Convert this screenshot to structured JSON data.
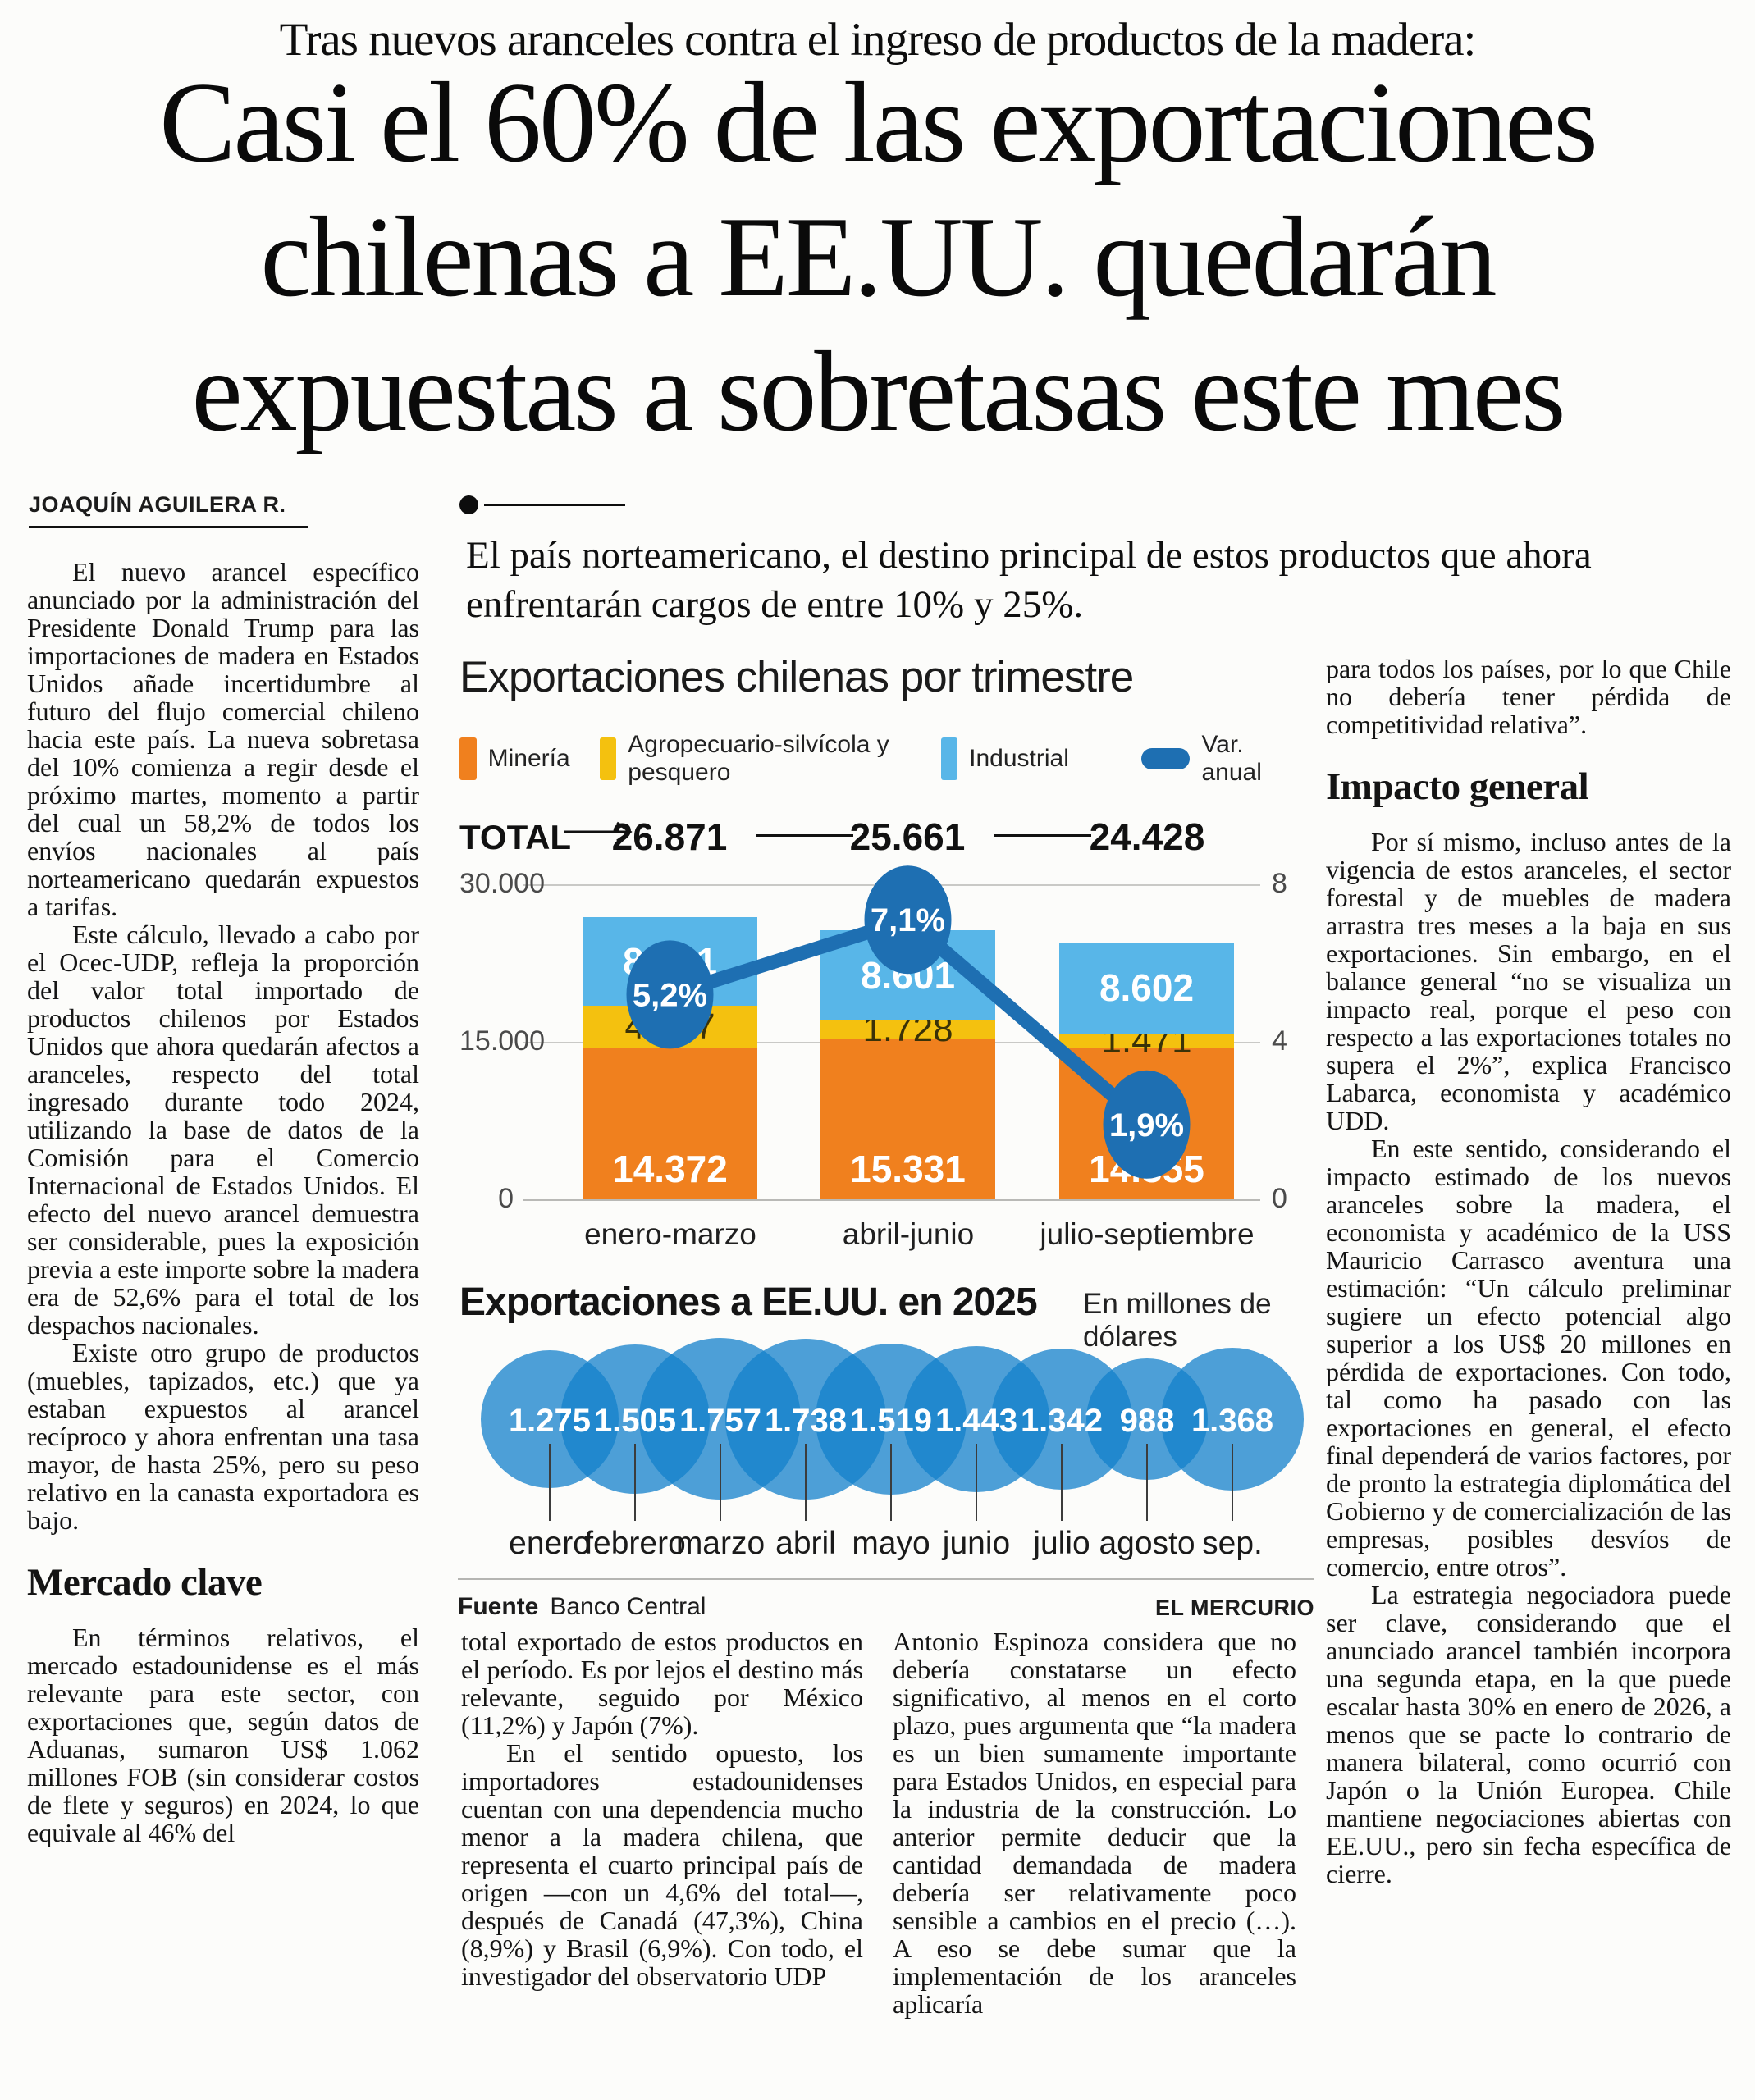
{
  "kicker": "Tras nuevos aranceles contra el ingreso de productos de la madera:",
  "headline": {
    "line1": "Casi el 60% de las exportaciones",
    "line2": "chilenas a EE.UU. quedarán",
    "line3": "expuestas a sobretasas este mes"
  },
  "standfirst": "El país norteamericano, el destino principal de estos productos que ahora enfrentarán cargos de entre 10% y 25%.",
  "article": {
    "byline": "JOAQUÍN AGUILERA R.",
    "col1": {
      "p1": "El nuevo arancel específico anunciado por la administración del Presidente Donald Trump para las importaciones de madera en Estados Unidos añade incertidumbre al futuro del flujo comercial chileno hacia este país. La nueva sobretasa del 10% comienza a regir desde el próximo martes, momento a partir del cual un 58,2% de todos los envíos nacionales al país norteamericano quedarán expuestos a tarifas.",
      "p2": "Este cálculo, llevado a cabo por el Ocec-UDP, refleja la proporción del valor total importado de productos chilenos por Estados Unidos que ahora quedarán afectos a aranceles, respecto del total ingresado durante todo 2024, utilizando la base de datos de la Comisión para el Comercio Internacional de Estados Unidos. El efecto del nuevo arancel demuestra ser considerable, pues la exposición previa a este importe sobre la madera era de 52,6% para el total de los despachos nacionales.",
      "p3": "Existe otro grupo de productos (muebles, tapizados, etc.) que ya estaban expuestos al arancel recíproco y ahora enfrentan una tasa mayor, de hasta 25%, pero su peso relativo en la canasta exportadora es bajo.",
      "heading": "Mercado clave",
      "p4": "En términos relativos, el mercado estadounidense es el más relevante para este sector, con exportaciones que, según datos de Aduanas, sumaron US$ 1.062 millones FOB (sin considerar costos de flete y seguros) en 2024, lo que equivale al 46% del"
    },
    "col2": {
      "p1": "total exportado de estos productos en el período. Es por lejos el destino más relevante, seguido por México (11,2%) y Japón (7%).",
      "p2": "En el sentido opuesto, los importadores estadounidenses cuentan con una dependencia mucho menor a la madera chilena, que representa el cuarto principal país de origen —con un 4,6% del total—, después de Canadá (47,3%), China (8,9%) y Brasil (6,9%). Con todo, el investigador del observatorio UDP"
    },
    "col3": {
      "p1": "Antonio Espinoza considera que no debería constatarse un efecto significativo, al menos en el corto plazo, pues argumenta que “la madera es un bien sumamente importante para Estados Unidos, en especial para la industria de la construcción. Lo anterior permite deducir que la cantidad demandada de madera debería ser relativamente poco sensible a cambios en el precio (…). A eso se debe sumar que la implementación de los aranceles aplicaría"
    },
    "col4": {
      "p1": "para todos los países, por lo que Chile no debería tener pérdida de competitividad relativa”.",
      "heading": "Impacto general",
      "p2": "Por sí mismo, incluso antes de la vigencia de estos aranceles, el sector forestal y de muebles de madera arrastra tres meses a la baja en sus exportaciones. Sin embargo, en el balance general “no se visualiza un impacto real, porque el peso con respecto a las exportaciones totales no supera el 2%”, explica Francisco Labarca, economista y académico UDD.",
      "p3": "En este sentido, considerando el impacto estimado de los nuevos aranceles sobre la madera, el economista y académico de la USS Mauricio Carrasco aventura una estimación: “Un cálculo preliminar sugiere un efecto potencial algo superior a los US$ 20 millones en pérdida de exportaciones. Con todo, tal como ha pasado con las exportaciones en general, el efecto final dependerá de varios factores, por de pronto la estrategia diplomática del Gobierno y de comercialización de las empresas, posibles desvíos de comercio, entre otros”.",
      "p4": "La estrategia negociadora puede ser clave, considerando que el anunciado arancel también incorpora una segunda etapa, en la que puede escalar hasta 30% en enero de 2026, a menos que se pacte lo contrario de manera bilateral, como ocurrió con Japón o la Unión Europea. Chile mantiene negociaciones abiertas con EE.UU., pero sin fecha específica de cierre."
    }
  },
  "chart_data": [
    {
      "type": "bar",
      "subtype": "stacked-bars-with-line",
      "title": "Exportaciones chilenas por trimestre",
      "categories": [
        "enero-marzo",
        "abril-junio",
        "julio-septiembre"
      ],
      "total_label": "TOTAL",
      "totals": [
        26871,
        25661,
        24428
      ],
      "totals_labels": [
        "26.871",
        "25.661",
        "24.428"
      ],
      "series": [
        {
          "name": "Minería",
          "color": "#F0801E",
          "values": [
            14372,
            15331,
            14355
          ],
          "labels": [
            "14.372",
            "15.331",
            "14.355"
          ]
        },
        {
          "name": "Agropecuario-silvícola y pesquero",
          "color": "#F4C10F",
          "values": [
            4037,
            1728,
            1471
          ],
          "labels": [
            "4.037",
            "1.728",
            "1.471"
          ]
        },
        {
          "name": "Industrial",
          "color": "#58B6E8",
          "values": [
            8461,
            8601,
            8602
          ],
          "labels": [
            "8.461",
            "8.601",
            "8.602"
          ]
        }
      ],
      "line_series": {
        "name": "Var. anual",
        "color": "#1E6FB2",
        "values": [
          5.2,
          7.1,
          1.9
        ],
        "labels": [
          "5,2%",
          "7,1%",
          "1,9%"
        ]
      },
      "left_axis": {
        "max": 30000,
        "ticks": [
          "30.000",
          "15.000",
          "0"
        ]
      },
      "right_axis": {
        "max": 8,
        "ticks": [
          "8",
          "4",
          "0"
        ]
      },
      "grid": "horizontal"
    },
    {
      "type": "bubble",
      "title": "Exportaciones a EE.UU. en 2025",
      "subtitle": "En millones de dólares",
      "color": "#1380CB",
      "categories": [
        "enero",
        "febrero",
        "marzo",
        "abril",
        "mayo",
        "junio",
        "julio",
        "agosto",
        "sep."
      ],
      "values": [
        1275,
        1505,
        1757,
        1738,
        1519,
        1443,
        1342,
        988,
        1368
      ],
      "labels": [
        "1.275",
        "1.505",
        "1.757",
        "1.738",
        "1.519",
        "1.443",
        "1.342",
        "988",
        "1.368"
      ]
    }
  ],
  "footer": {
    "source_label": "Fuente",
    "source": "Banco Central",
    "credit": "EL MERCURIO"
  }
}
